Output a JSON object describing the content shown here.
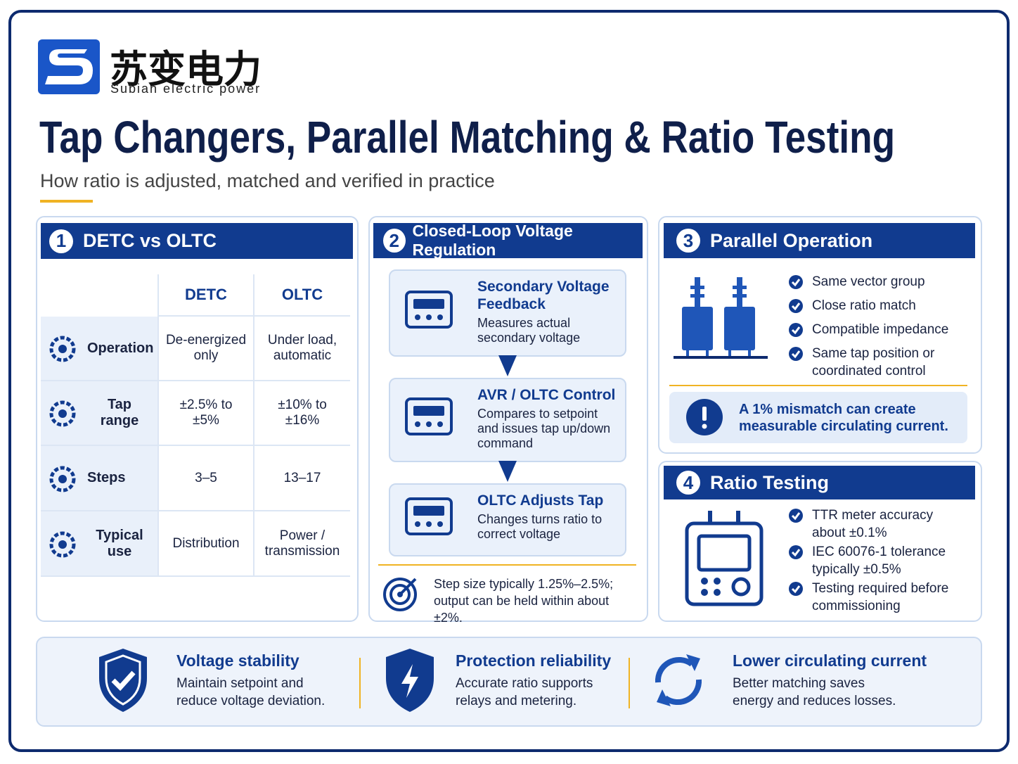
{
  "header": {
    "brand_cn": "苏变电力",
    "brand_en": "Subian electric power",
    "title": "Tap Changers, Parallel Matching & Ratio Testing",
    "subtitle": "How ratio is adjusted, matched and verified in practice"
  },
  "panels": [
    {
      "number": "1",
      "title": "DETC vs OLTC",
      "columns": [
        "DETC",
        "OLTC"
      ],
      "rows": [
        {
          "label": "Operation",
          "cells": [
            "De-energized only",
            "Under load, automatic"
          ]
        },
        {
          "label": "Tap range",
          "cells": [
            "±2.5% to ±5%",
            "±10% to ±16%"
          ]
        },
        {
          "label": "Steps",
          "cells": [
            "3–5",
            "13–17"
          ]
        },
        {
          "label": "Typical use",
          "cells": [
            "Distribution",
            "Power / transmission"
          ]
        }
      ]
    },
    {
      "number": "2",
      "title": "Closed-Loop Voltage Regulation",
      "steps": [
        {
          "title": "Secondary Voltage Feedback",
          "text": "Measures actual secondary voltage"
        },
        {
          "title": "AVR / OLTC Control",
          "text": "Compares to setpoint and issues tap up/down command"
        },
        {
          "title": "OLTC Adjusts Tap",
          "text": "Changes turns ratio to correct voltage"
        }
      ],
      "note": "Step size typically 1.25%–2.5%; output can be held within about ±2%."
    },
    {
      "number": "3",
      "title": "Parallel Operation",
      "items": [
        "Same vector group",
        "Close ratio match",
        "Compatible impedance",
        "Same tap position or coordinated control"
      ],
      "alert": "A 1% mismatch can create measurable circulating current."
    },
    {
      "number": "4",
      "title": "Ratio Testing",
      "items": [
        "TTR meter accuracy about ±0.1%",
        "IEC 60076-1 tolerance typically ±0.5%",
        "Testing required before commissioning"
      ]
    }
  ],
  "benefits": [
    {
      "title": "Voltage stability",
      "text": "Maintain setpoint and reduce voltage deviation."
    },
    {
      "title": "Protection reliability",
      "text": "Accurate ratio supports relays and metering."
    },
    {
      "title": "Lower circulating current",
      "text": "Better matching saves energy and reduces losses."
    }
  ]
}
